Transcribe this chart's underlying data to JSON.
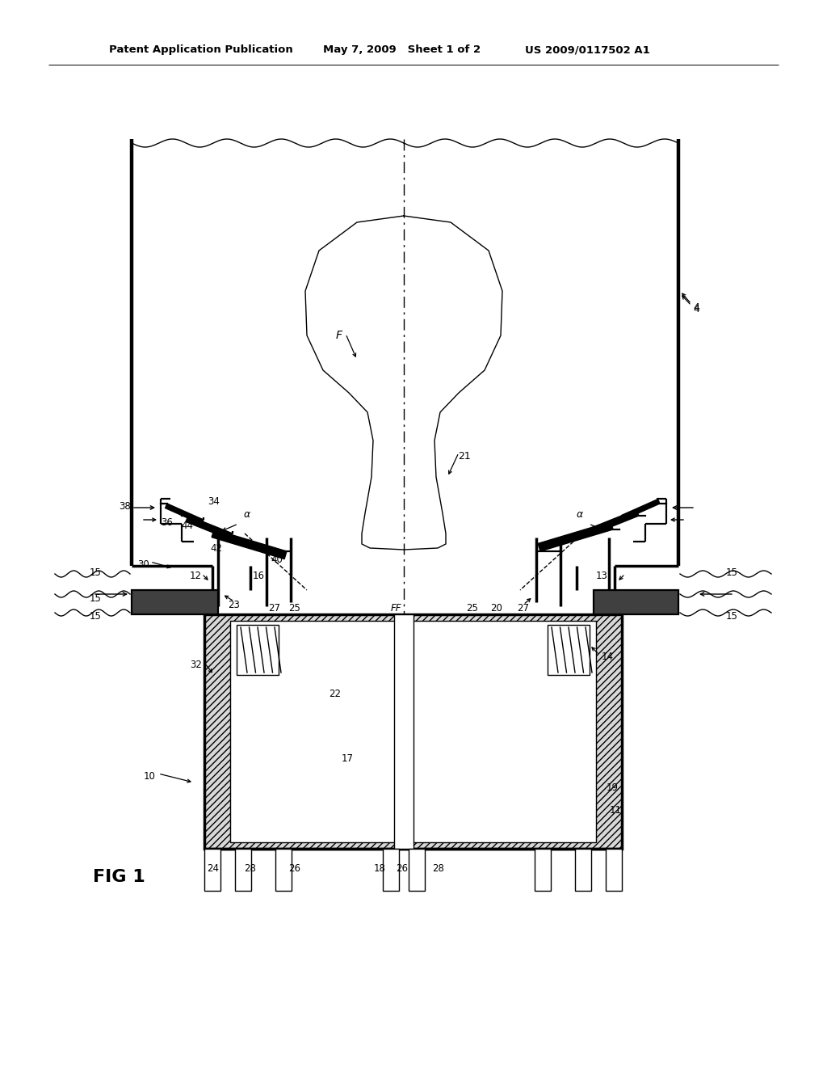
{
  "bg_color": "#ffffff",
  "lc": "#000000",
  "header_left": "Patent Application Publication",
  "header_mid": "May 7, 2009   Sheet 1 of 2",
  "header_right": "US 2009/0117502 A1",
  "fig_label": "FIG 1"
}
